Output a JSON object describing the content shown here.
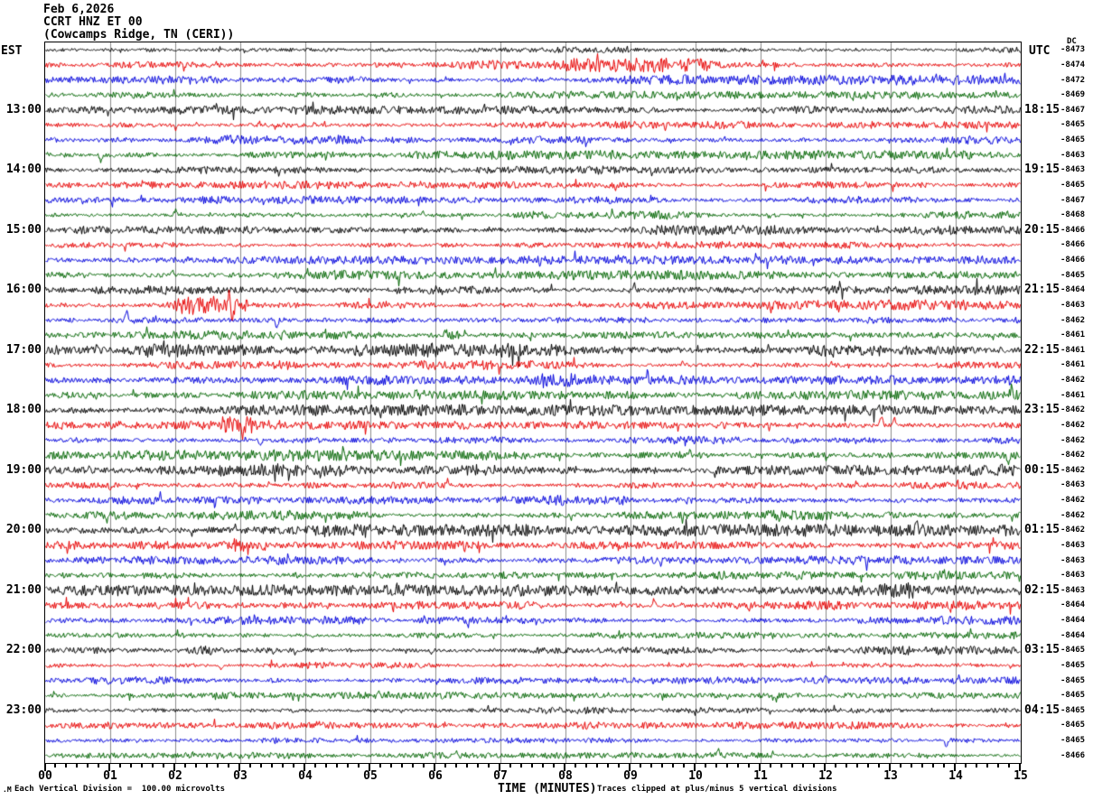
{
  "header": {
    "date": "Feb 6,2026",
    "station": "CCRT HNZ ET 00",
    "location": "(Cowcamps Ridge, TN (CERI))"
  },
  "axis": {
    "left_tz": "EST",
    "right_tz": "UTC",
    "dc_header": "DC",
    "xaxis_title": "TIME (MINUTES)",
    "minute_labels": [
      "00",
      "01",
      "02",
      "03",
      "04",
      "05",
      "06",
      "07",
      "08",
      "09",
      "10",
      "11",
      "12",
      "13",
      "14",
      "15"
    ]
  },
  "footer": {
    "corner_mark": ".M",
    "scale_note": "Each Vertical Division =  100.00 microvolts",
    "clip_note": "Traces clipped at plus/minus 5 vertical divisions"
  },
  "chart_data": {
    "type": "line",
    "kind": "helicorder-seismogram",
    "title": "CCRT HNZ ET 00 (Cowcamps Ridge, TN (CERI)) Feb 6,2026",
    "xlabel": "TIME (MINUTES)",
    "x_range_minutes": [
      0,
      15
    ],
    "minutes_per_row": 15,
    "n_rows": 48,
    "grid": true,
    "grid_color": "#8c8c8c",
    "trace_color_cycle": [
      "#000000",
      "#e80000",
      "#0000dd",
      "#006400"
    ],
    "vertical_division_microvolts": 100.0,
    "clip_divisions": 5,
    "rows": [
      {
        "dc": -8473,
        "amp": 1.0
      },
      {
        "dc": -8474,
        "amp": 1.3,
        "bursts": [
          [
            7.8,
            10.2,
            1.6
          ]
        ],
        "spikes": [
          [
            8.6,
            6
          ],
          [
            9.9,
            5
          ]
        ]
      },
      {
        "dc": -8472,
        "amp": 1.4,
        "bursts": [
          [
            2.2,
            5.0,
            1.4
          ]
        ]
      },
      {
        "dc": -8469,
        "amp": 1.1
      },
      {
        "est": "13:00",
        "utc": "18:15",
        "dc": -8467,
        "amp": 1.2
      },
      {
        "dc": -8465,
        "amp": 1.2,
        "spikes": [
          [
            2.0,
            -5
          ]
        ]
      },
      {
        "dc": -8465,
        "amp": 1.4
      },
      {
        "dc": -8463,
        "amp": 1.3,
        "spikes": [
          [
            0.85,
            -7
          ]
        ]
      },
      {
        "est": "14:00",
        "utc": "19:15",
        "dc": -8463,
        "amp": 1.3
      },
      {
        "dc": -8465,
        "amp": 1.1,
        "spikes": [
          [
            1.5,
            4
          ]
        ]
      },
      {
        "dc": -8467,
        "amp": 1.3
      },
      {
        "dc": -8468,
        "amp": 1.2,
        "spikes": [
          [
            2.0,
            5
          ],
          [
            5.8,
            4
          ]
        ]
      },
      {
        "est": "15:00",
        "utc": "20:15",
        "dc": -8466,
        "amp": 1.4
      },
      {
        "dc": -8466,
        "amp": 1.0
      },
      {
        "dc": -8466,
        "amp": 1.2
      },
      {
        "dc": -8465,
        "amp": 1.3,
        "spikes": [
          [
            1.95,
            6
          ]
        ]
      },
      {
        "est": "16:00",
        "utc": "21:15",
        "dc": -8464,
        "amp": 1.5,
        "bursts": [
          [
            5.4,
            6.2,
            1.8
          ]
        ],
        "spikes": [
          [
            9.05,
            7
          ]
        ]
      },
      {
        "dc": -8463,
        "amp": 1.5,
        "bursts": [
          [
            1.9,
            3.1,
            2.2
          ]
        ],
        "spikes": [
          [
            2.83,
            15
          ],
          [
            2.87,
            -18
          ],
          [
            12.2,
            -6
          ]
        ]
      },
      {
        "dc": -8462,
        "amp": 1.4,
        "spikes": [
          [
            1.25,
            8
          ],
          [
            3.55,
            -9
          ]
        ]
      },
      {
        "dc": -8461,
        "amp": 1.3,
        "bursts": [
          [
            5.9,
            6.4,
            1.7
          ]
        ],
        "spikes": [
          [
            6.15,
            5
          ],
          [
            0.3,
            -4
          ]
        ]
      },
      {
        "est": "17:00",
        "utc": "22:15",
        "dc": -8461,
        "amp": 1.8,
        "bursts": [
          [
            0.0,
            15.0,
            1.1
          ]
        ],
        "spikes": [
          [
            0.8,
            6
          ],
          [
            12.1,
            -5
          ]
        ]
      },
      {
        "dc": -8461,
        "amp": 1.3,
        "spikes": [
          [
            9.8,
            5
          ]
        ]
      },
      {
        "dc": -8462,
        "amp": 1.3,
        "bursts": [
          [
            7.6,
            8.2,
            1.6
          ]
        ],
        "spikes": [
          [
            9.25,
            7
          ]
        ]
      },
      {
        "dc": -8461,
        "amp": 1.4,
        "spikes": [
          [
            5.7,
            6
          ],
          [
            14.85,
            8
          ]
        ]
      },
      {
        "est": "18:00",
        "utc": "23:15",
        "dc": -8462,
        "amp": 1.6
      },
      {
        "dc": -8462,
        "amp": 1.5,
        "bursts": [
          [
            2.7,
            3.2,
            1.7
          ]
        ],
        "spikes": [
          [
            12.85,
            10
          ],
          [
            13.05,
            9
          ],
          [
            2.95,
            6
          ]
        ]
      },
      {
        "dc": -8462,
        "amp": 1.4,
        "spikes": [
          [
            3.3,
            -6
          ]
        ]
      },
      {
        "dc": -8462,
        "amp": 1.6,
        "bursts": [
          [
            9.7,
            10.1,
            1.6
          ]
        ],
        "spikes": [
          [
            14.8,
            -12
          ],
          [
            9.9,
            6
          ]
        ]
      },
      {
        "est": "19:00",
        "utc": "00:15",
        "dc": -8462,
        "amp": 1.8
      },
      {
        "dc": -8463,
        "amp": 1.3,
        "spikes": [
          [
            1.0,
            -5
          ]
        ]
      },
      {
        "dc": -8462,
        "amp": 1.6,
        "bursts": [
          [
            5.0,
            9.0,
            1.3
          ]
        ]
      },
      {
        "dc": -8462,
        "amp": 1.4,
        "spikes": [
          [
            0.95,
            -6
          ]
        ]
      },
      {
        "est": "20:00",
        "utc": "01:15",
        "dc": -8462,
        "amp": 1.7,
        "spikes": [
          [
            13.4,
            7
          ]
        ]
      },
      {
        "dc": -8463,
        "amp": 1.5,
        "bursts": [
          [
            2.9,
            3.4,
            1.7
          ]
        ],
        "spikes": [
          [
            3.1,
            6
          ],
          [
            11.2,
            4
          ]
        ]
      },
      {
        "dc": -8463,
        "amp": 1.3
      },
      {
        "dc": -8463,
        "amp": 1.4
      },
      {
        "est": "21:00",
        "utc": "02:15",
        "dc": -8463,
        "amp": 1.6,
        "bursts": [
          [
            12.8,
            13.4,
            1.7
          ]
        ],
        "spikes": [
          [
            9.3,
            -5
          ]
        ]
      },
      {
        "dc": -8464,
        "amp": 1.4,
        "spikes": [
          [
            9.35,
            6
          ],
          [
            13.9,
            -5
          ]
        ]
      },
      {
        "dc": -8464,
        "amp": 1.3
      },
      {
        "dc": -8464,
        "amp": 1.2
      },
      {
        "est": "22:00",
        "utc": "03:15",
        "dc": -8465,
        "amp": 1.3,
        "bursts": [
          [
            2.2,
            2.6,
            1.6
          ]
        ]
      },
      {
        "dc": -8465,
        "amp": 1.1,
        "spikes": [
          [
            2.7,
            -6
          ]
        ]
      },
      {
        "dc": -8465,
        "amp": 1.1,
        "spikes": [
          [
            12.0,
            4
          ]
        ]
      },
      {
        "dc": -8465,
        "amp": 1.0
      },
      {
        "est": "23:00",
        "utc": "04:15",
        "dc": -8465,
        "amp": 1.2
      },
      {
        "dc": -8465,
        "amp": 1.1,
        "spikes": [
          [
            4.2,
            4
          ]
        ]
      },
      {
        "dc": -8465,
        "amp": 0.9,
        "spikes": [
          [
            13.85,
            -8
          ]
        ]
      },
      {
        "dc": -8466,
        "amp": 0.9,
        "spikes": [
          [
            10.35,
            5
          ]
        ]
      }
    ]
  }
}
